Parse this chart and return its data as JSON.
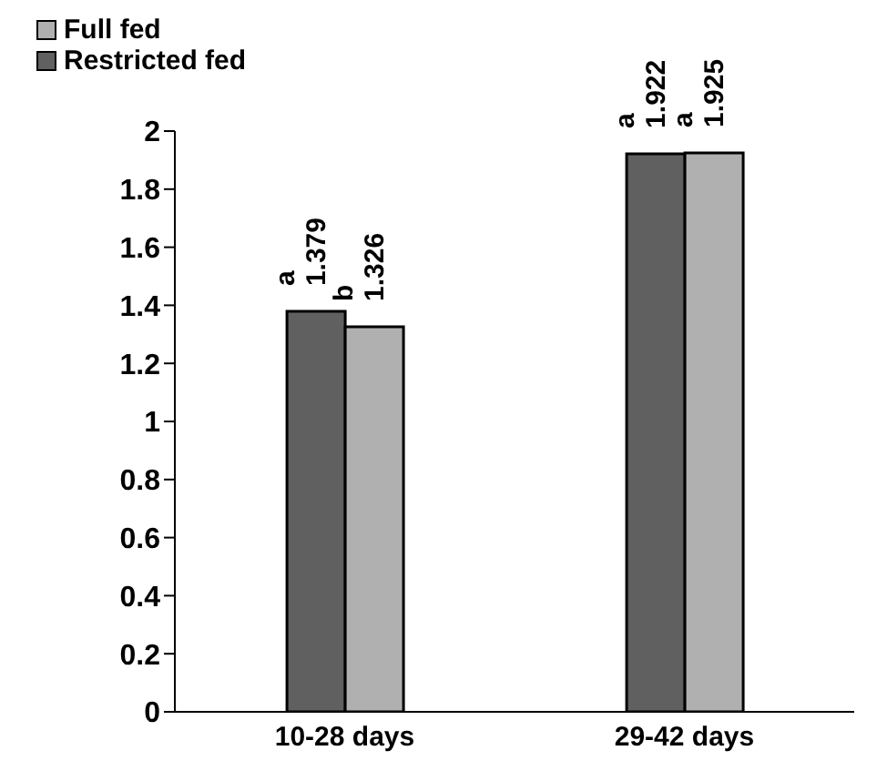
{
  "chart_data": {
    "type": "bar",
    "categories": [
      "10-28 days",
      "29-42 days"
    ],
    "series": [
      {
        "name": "Restricted fed",
        "color": "#606060",
        "values": [
          1.379,
          1.922
        ],
        "value_labels": [
          "a 1.379",
          "a 1.922"
        ]
      },
      {
        "name": "Full fed",
        "color": "#b0b0b0",
        "values": [
          1.326,
          1.925
        ],
        "value_labels": [
          "b 1.326",
          "a 1.925"
        ]
      }
    ],
    "ylim": [
      0,
      2
    ],
    "yticks": [
      0,
      0.2,
      0.4,
      0.6,
      0.8,
      1,
      1.2,
      1.4,
      1.6,
      1.8,
      2
    ],
    "grid": false,
    "legend": "top left"
  }
}
